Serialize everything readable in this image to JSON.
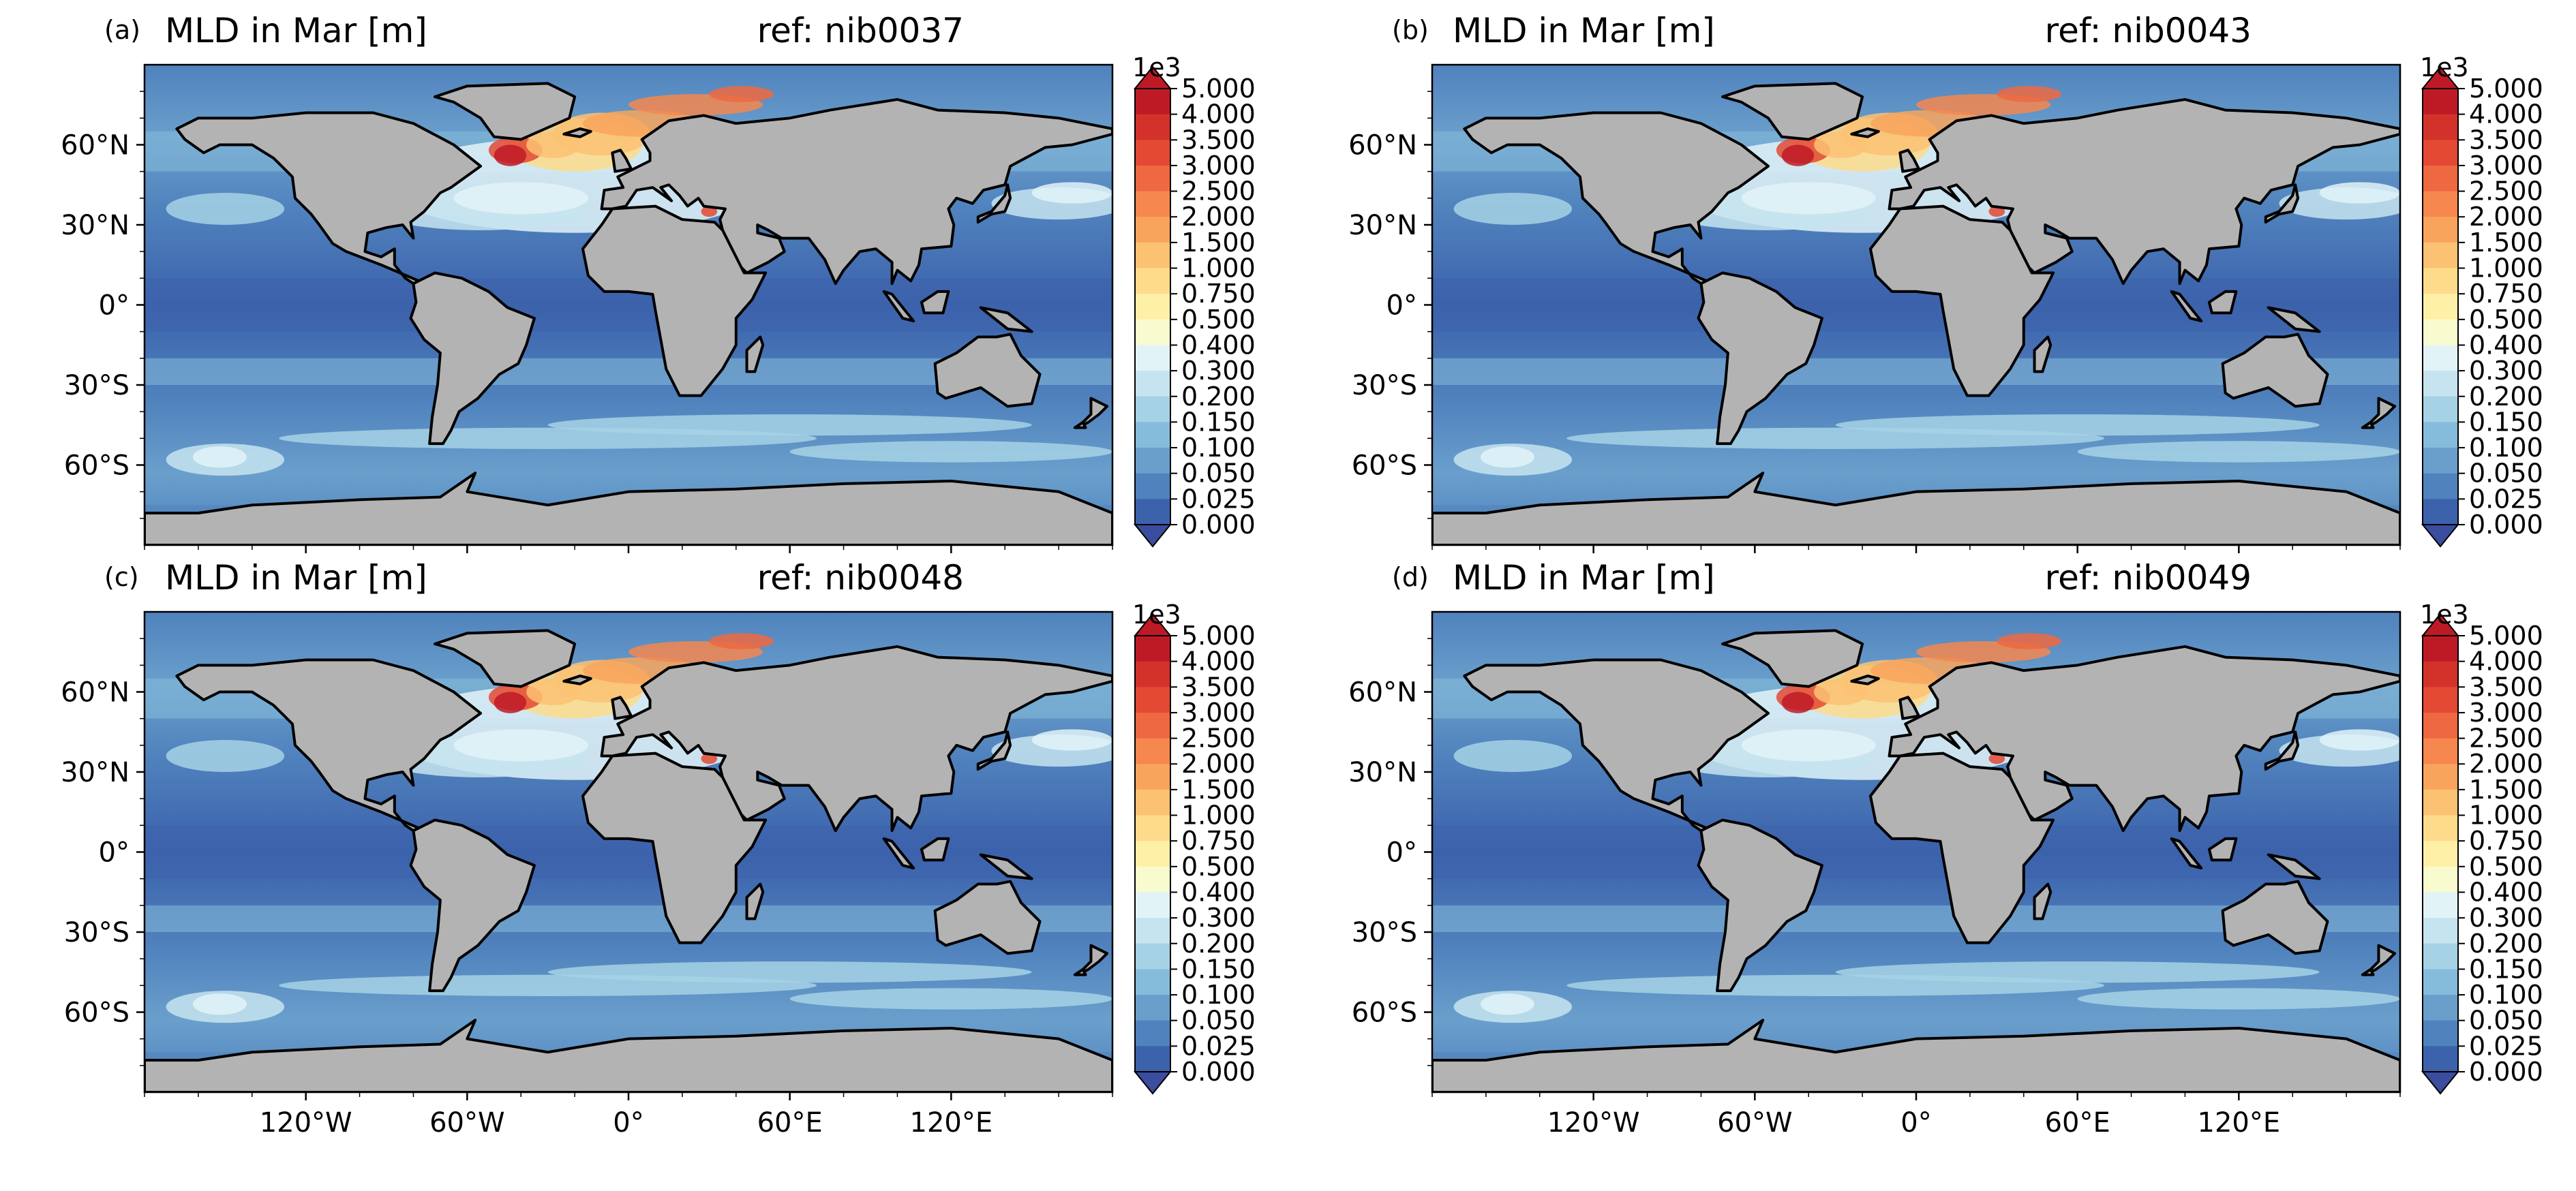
{
  "figure": {
    "panels": [
      {
        "label": "(a)",
        "title": "MLD in Mar [m]",
        "ref": "ref: nib0037"
      },
      {
        "label": "(b)",
        "title": "MLD in Mar [m]",
        "ref": "ref: nib0043"
      },
      {
        "label": "(c)",
        "title": "MLD in Mar [m]",
        "ref": "ref: nib0048"
      },
      {
        "label": "(d)",
        "title": "MLD in Mar [m]",
        "ref": "ref: nib0049"
      }
    ],
    "lat_ticks": [
      "60°N",
      "30°N",
      "0°",
      "30°S",
      "60°S"
    ],
    "lon_ticks": [
      "120°W",
      "60°W",
      "0°",
      "60°E",
      "120°E"
    ],
    "colorbar": {
      "multiplier": "1e3",
      "ticks": [
        "5.000",
        "4.000",
        "3.500",
        "3.000",
        "2.500",
        "2.000",
        "1.500",
        "1.000",
        "0.750",
        "0.500",
        "0.400",
        "0.300",
        "0.200",
        "0.150",
        "0.100",
        "0.050",
        "0.025",
        "0.000"
      ],
      "colors": [
        "#be1a26",
        "#d3322b",
        "#e34933",
        "#ee6841",
        "#f5874f",
        "#f9a45c",
        "#fcc273",
        "#fedb8b",
        "#fff0a8",
        "#f8fbce",
        "#e2f3f8",
        "#c6e4ef",
        "#a6d2e5",
        "#86bcdb",
        "#6a9fcc",
        "#5082bd",
        "#3c62ac",
        "#3a4d9f"
      ],
      "land_color": "#b3b3b3"
    }
  }
}
